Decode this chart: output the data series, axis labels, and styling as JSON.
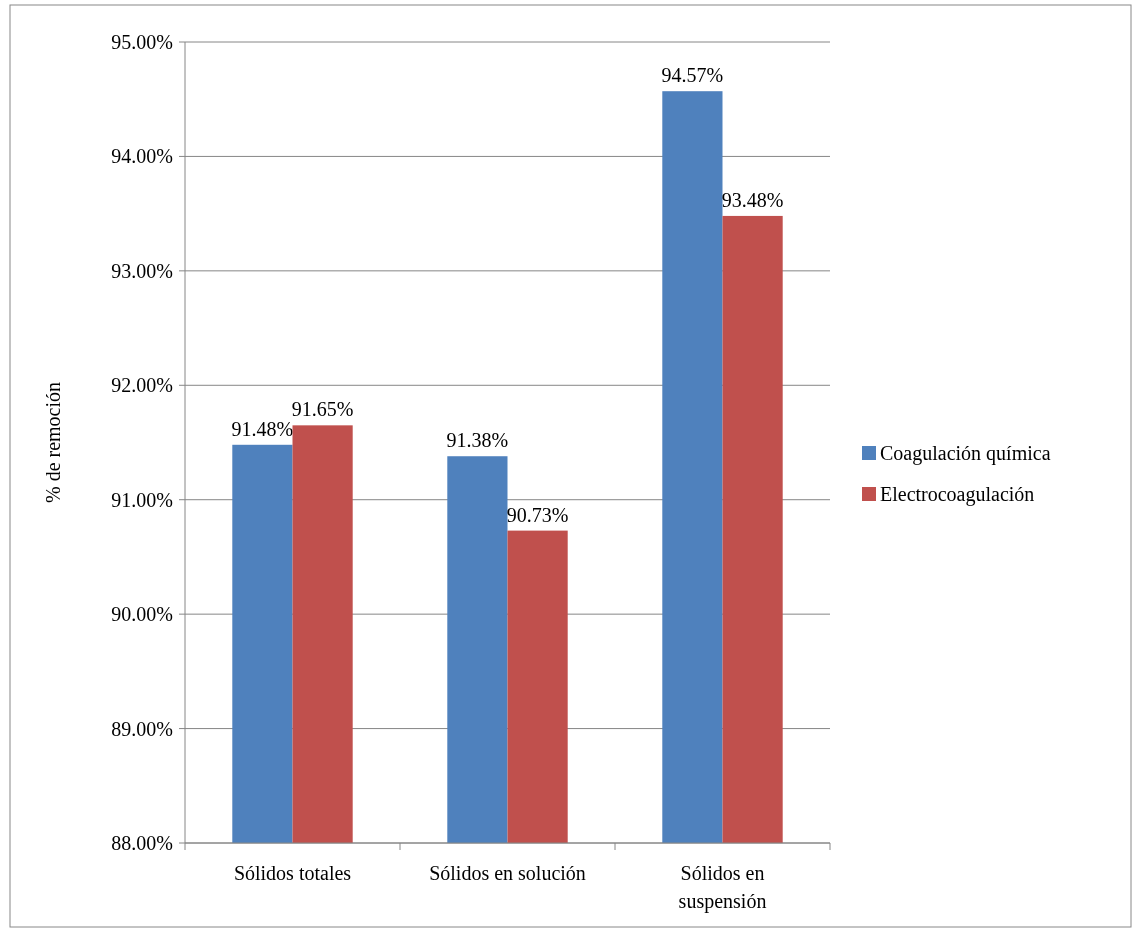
{
  "chart_data": {
    "type": "bar",
    "ylabel": "% de remoción",
    "categories": [
      "Sólidos totales",
      "Sólidos en solución",
      "Sólidos en suspensión"
    ],
    "series": [
      {
        "name": "Coagulación química",
        "color": "#4f81bd",
        "values": [
          91.48,
          91.38,
          94.57
        ],
        "value_labels": [
          "91.48%",
          "91.38%",
          "94.57%"
        ]
      },
      {
        "name": "Electrocoagulación",
        "color": "#c0504d",
        "values": [
          91.65,
          90.73,
          93.48
        ],
        "value_labels": [
          "91.65%",
          "90.73%",
          "93.48%"
        ]
      }
    ],
    "ylim": [
      88,
      95
    ],
    "yticks": [
      {
        "value": 88,
        "label": "88.00%"
      },
      {
        "value": 89,
        "label": "89.00%"
      },
      {
        "value": 90,
        "label": "90.00%"
      },
      {
        "value": 91,
        "label": "91.00%"
      },
      {
        "value": 92,
        "label": "92.00%"
      },
      {
        "value": 93,
        "label": "93.00%"
      },
      {
        "value": 94,
        "label": "94.00%"
      },
      {
        "value": 95,
        "label": "95.00%"
      }
    ],
    "grid": "y",
    "legend": "right"
  }
}
